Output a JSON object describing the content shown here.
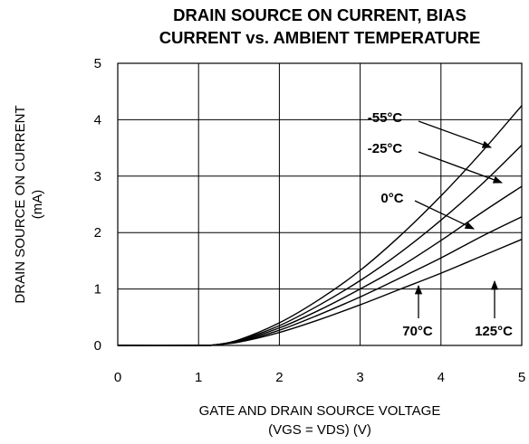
{
  "chart_data": {
    "type": "line",
    "title": [
      "DRAIN SOURCE ON CURRENT, BIAS",
      "CURRENT vs. AMBIENT TEMPERATURE"
    ],
    "xlabel": [
      "GATE AND DRAIN SOURCE VOLTAGE",
      "(VGS = VDS) (V)"
    ],
    "ylabel": [
      "DRAIN SOURCE ON CURRENT",
      "(mA)"
    ],
    "xlim": [
      0,
      5
    ],
    "ylim": [
      0,
      5
    ],
    "xticks": [
      "0",
      "1",
      "2",
      "3",
      "4",
      "5"
    ],
    "yticks": [
      "0",
      "1",
      "2",
      "3",
      "4",
      "5"
    ],
    "grid": true,
    "series": [
      {
        "name": "-55°C",
        "x": [
          0,
          1.0,
          1.2,
          1.5,
          2.0,
          2.5,
          3.0,
          3.5,
          4.0,
          4.5,
          5.0
        ],
        "y": [
          0,
          0,
          0.01,
          0.1,
          0.4,
          0.82,
          1.33,
          1.95,
          2.65,
          3.42,
          4.25
        ]
      },
      {
        "name": "-25°C",
        "x": [
          0,
          1.0,
          1.2,
          1.5,
          2.0,
          2.5,
          3.0,
          3.5,
          4.0,
          4.5,
          5.0
        ],
        "y": [
          0,
          0,
          0.01,
          0.09,
          0.35,
          0.72,
          1.15,
          1.65,
          2.22,
          2.85,
          3.55
        ]
      },
      {
        "name": "0°C",
        "x": [
          0,
          1.0,
          1.2,
          1.5,
          2.0,
          2.5,
          3.0,
          3.5,
          4.0,
          4.5,
          5.0
        ],
        "y": [
          0,
          0,
          0.01,
          0.08,
          0.31,
          0.63,
          1.0,
          1.4,
          1.86,
          2.35,
          2.82
        ]
      },
      {
        "name": "70°C",
        "x": [
          0,
          1.0,
          1.2,
          1.5,
          2.0,
          2.5,
          3.0,
          3.5,
          4.0,
          4.5,
          5.0
        ],
        "y": [
          0,
          0,
          0.01,
          0.07,
          0.27,
          0.55,
          0.86,
          1.2,
          1.55,
          1.93,
          2.28
        ]
      },
      {
        "name": "125°C",
        "x": [
          0,
          1.0,
          1.2,
          1.5,
          2.0,
          2.5,
          3.0,
          3.5,
          4.0,
          4.5,
          5.0
        ],
        "y": [
          0,
          0,
          0.01,
          0.06,
          0.23,
          0.46,
          0.72,
          1.0,
          1.28,
          1.58,
          1.88
        ]
      }
    ],
    "annotations": [
      {
        "text": "-55°C",
        "series": 0
      },
      {
        "text": "-25°C",
        "series": 1
      },
      {
        "text": "0°C",
        "series": 2
      },
      {
        "text": "70°C",
        "series": 3
      },
      {
        "text": "125°C",
        "series": 4
      }
    ]
  }
}
